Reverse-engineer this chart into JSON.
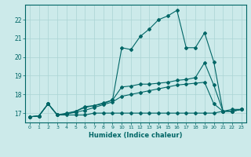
{
  "xlabel": "Humidex (Indice chaleur)",
  "background_color": "#cceaea",
  "line_color": "#006666",
  "grid_color": "#aad4d4",
  "x_ticks": [
    0,
    1,
    2,
    3,
    4,
    5,
    6,
    7,
    8,
    9,
    10,
    11,
    12,
    13,
    14,
    15,
    16,
    17,
    18,
    19,
    20,
    21,
    22,
    23
  ],
  "ylim": [
    16.5,
    22.8
  ],
  "xlim": [
    -0.5,
    23.5
  ],
  "yticks": [
    17,
    18,
    19,
    20,
    21,
    22
  ],
  "l1y": [
    16.8,
    16.85,
    17.5,
    16.9,
    16.9,
    16.9,
    16.9,
    17.0,
    17.0,
    17.0,
    17.0,
    17.0,
    17.0,
    17.0,
    17.0,
    17.0,
    17.0,
    17.0,
    17.0,
    17.0,
    17.0,
    17.1,
    17.2,
    17.2
  ],
  "l2y": [
    16.8,
    16.85,
    17.5,
    16.9,
    16.95,
    17.05,
    17.15,
    17.3,
    17.45,
    17.6,
    17.9,
    18.0,
    18.1,
    18.2,
    18.3,
    18.4,
    18.5,
    18.55,
    18.6,
    18.65,
    17.5,
    17.1,
    17.1,
    17.2
  ],
  "l3y": [
    16.8,
    16.85,
    17.5,
    16.9,
    16.95,
    17.1,
    17.3,
    17.4,
    17.5,
    17.7,
    18.4,
    18.45,
    18.55,
    18.55,
    18.6,
    18.65,
    18.75,
    18.8,
    18.9,
    19.7,
    18.5,
    17.1,
    17.1,
    17.2
  ],
  "l4y": [
    16.8,
    16.85,
    17.5,
    16.9,
    17.0,
    17.1,
    17.35,
    17.4,
    17.55,
    17.7,
    20.5,
    20.4,
    21.1,
    21.5,
    22.0,
    22.2,
    22.5,
    20.5,
    20.5,
    21.3,
    19.75,
    17.1,
    17.1,
    17.2
  ]
}
